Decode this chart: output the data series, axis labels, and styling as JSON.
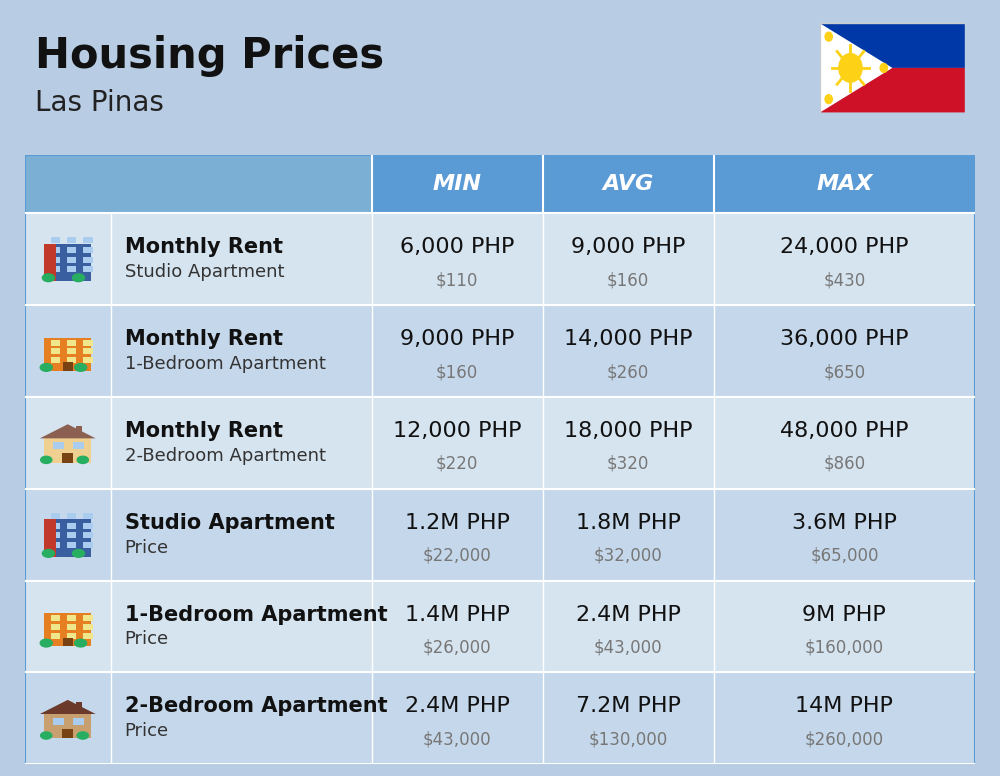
{
  "title": "Housing Prices",
  "subtitle": "Las Pinas",
  "background_color": "#b8cce4",
  "header_bg_color": "#5b9bd5",
  "header_text_color": "#ffffff",
  "row_bg_even": "#d6e4f0",
  "row_bg_odd": "#c5d8eb",
  "header_labels": [
    "MIN",
    "AVG",
    "MAX"
  ],
  "rows": [
    {
      "icon_type": "blue_office",
      "bold_text": "Monthly Rent",
      "light_text": "Studio Apartment",
      "min_php": "6,000 PHP",
      "min_usd": "$110",
      "avg_php": "9,000 PHP",
      "avg_usd": "$160",
      "max_php": "24,000 PHP",
      "max_usd": "$430"
    },
    {
      "icon_type": "orange_apt",
      "bold_text": "Monthly Rent",
      "light_text": "1-Bedroom Apartment",
      "min_php": "9,000 PHP",
      "min_usd": "$160",
      "avg_php": "14,000 PHP",
      "avg_usd": "$260",
      "max_php": "36,000 PHP",
      "max_usd": "$650"
    },
    {
      "icon_type": "beige_house",
      "bold_text": "Monthly Rent",
      "light_text": "2-Bedroom Apartment",
      "min_php": "12,000 PHP",
      "min_usd": "$220",
      "avg_php": "18,000 PHP",
      "avg_usd": "$320",
      "max_php": "48,000 PHP",
      "max_usd": "$860"
    },
    {
      "icon_type": "blue_office",
      "bold_text": "Studio Apartment",
      "light_text": "Price",
      "min_php": "1.2M PHP",
      "min_usd": "$22,000",
      "avg_php": "1.8M PHP",
      "avg_usd": "$32,000",
      "max_php": "3.6M PHP",
      "max_usd": "$65,000"
    },
    {
      "icon_type": "orange_apt",
      "bold_text": "1-Bedroom Apartment",
      "light_text": "Price",
      "min_php": "1.4M PHP",
      "min_usd": "$26,000",
      "avg_php": "2.4M PHP",
      "avg_usd": "$43,000",
      "max_php": "9M PHP",
      "max_usd": "$160,000"
    },
    {
      "icon_type": "brown_house",
      "bold_text": "2-Bedroom Apartment",
      "light_text": "Price",
      "min_php": "2.4M PHP",
      "min_usd": "$43,000",
      "avg_php": "7.2M PHP",
      "avg_usd": "$130,000",
      "max_php": "14M PHP",
      "max_usd": "$260,000"
    }
  ],
  "title_fontsize": 30,
  "subtitle_fontsize": 20,
  "header_fontsize": 16,
  "body_fontsize": 15,
  "usd_fontsize": 12
}
